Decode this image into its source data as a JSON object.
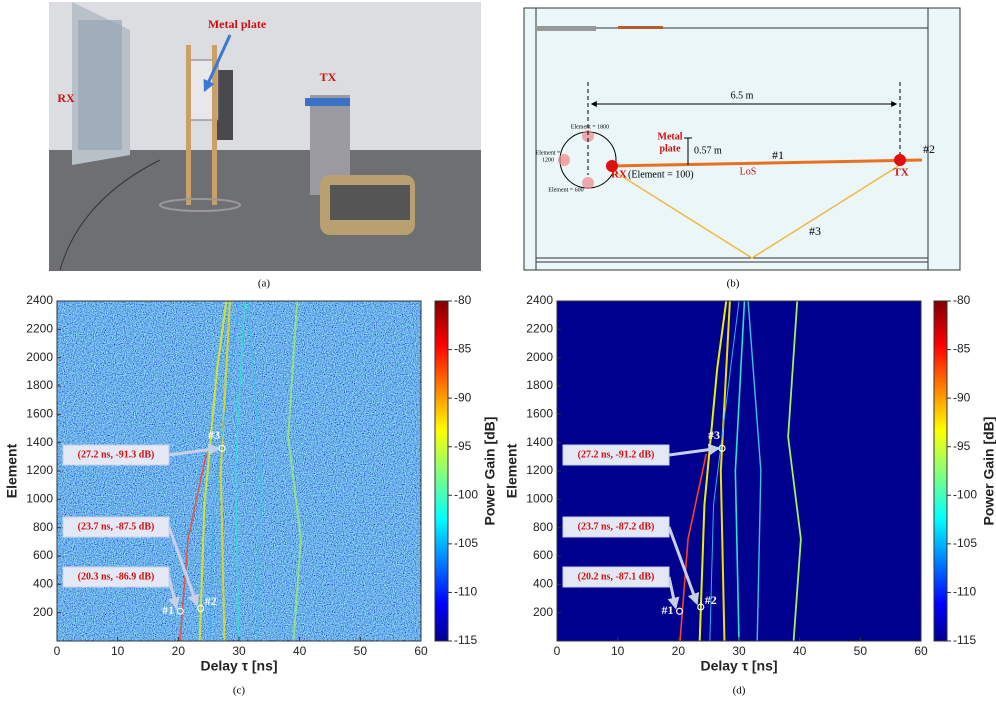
{
  "photo": {
    "labels": {
      "rx": "RX",
      "metal_plate": "Metal plate",
      "tx": "TX"
    },
    "caption": "(a)"
  },
  "diagram": {
    "distance": "6.5 m",
    "element_1800": "Element = 1800",
    "element_1200": [
      "Element =",
      "1200"
    ],
    "element_600": "Element = 600",
    "metal_plate": [
      "Metal",
      "plate"
    ],
    "height": "0.57 m",
    "path1": "#1",
    "path2": "#2",
    "path3": "#3",
    "rx": "RX",
    "rx_element": "(Element = 100)",
    "los": "LoS",
    "tx": "TX",
    "caption": "(b)"
  },
  "chart_data": [
    {
      "type": "heatmap",
      "xlabel": "Delay τ [ns]",
      "ylabel": "Element",
      "xlim": [
        0,
        60
      ],
      "xticks": [
        0,
        10,
        20,
        30,
        40,
        50,
        60
      ],
      "ylim": [
        0,
        2400
      ],
      "yticks": [
        200,
        400,
        600,
        800,
        1000,
        1200,
        1400,
        1600,
        1800,
        2000,
        2200,
        2400
      ],
      "colorbar": {
        "label": "Power Gain [dB]",
        "clim": [
          -115,
          -80
        ],
        "ticks": [
          -80,
          -85,
          -90,
          -95,
          -100,
          -105,
          -110,
          -115
        ],
        "colormap": "jet"
      },
      "annotations": [
        {
          "label": "#3",
          "x": 27.2,
          "y": 1360,
          "text": "(27.2 ns, -91.3 dB)"
        },
        {
          "label": "#2",
          "x": 23.7,
          "y": 230,
          "text": "(23.7 ns, -87.5 dB)"
        },
        {
          "label": "#1",
          "x": 20.3,
          "y": 210,
          "text": "(20.3 ns, -86.9 dB)"
        }
      ],
      "caption": "(c)"
    },
    {
      "type": "heatmap",
      "xlabel": "Delay τ [ns]",
      "ylabel": "Element",
      "xlim": [
        0,
        60
      ],
      "xticks": [
        0,
        10,
        20,
        30,
        40,
        50,
        60
      ],
      "ylim": [
        0,
        2400
      ],
      "yticks": [
        200,
        400,
        600,
        800,
        1000,
        1200,
        1400,
        1600,
        1800,
        2000,
        2200,
        2400
      ],
      "colorbar": {
        "label": "Power Gain [dB]",
        "clim": [
          -115,
          -80
        ],
        "ticks": [
          -80,
          -85,
          -90,
          -95,
          -100,
          -105,
          -110,
          -115
        ],
        "colormap": "jet"
      },
      "annotations": [
        {
          "label": "#3",
          "x": 27.2,
          "y": 1360,
          "text": "(27.2 ns, -91.2 dB)"
        },
        {
          "label": "#2",
          "x": 23.7,
          "y": 240,
          "text": "(23.7 ns, -87.2 dB)"
        },
        {
          "label": "#1",
          "x": 20.2,
          "y": 210,
          "text": "(20.2 ns, -87.1 dB)"
        }
      ],
      "caption": "(d)"
    }
  ]
}
